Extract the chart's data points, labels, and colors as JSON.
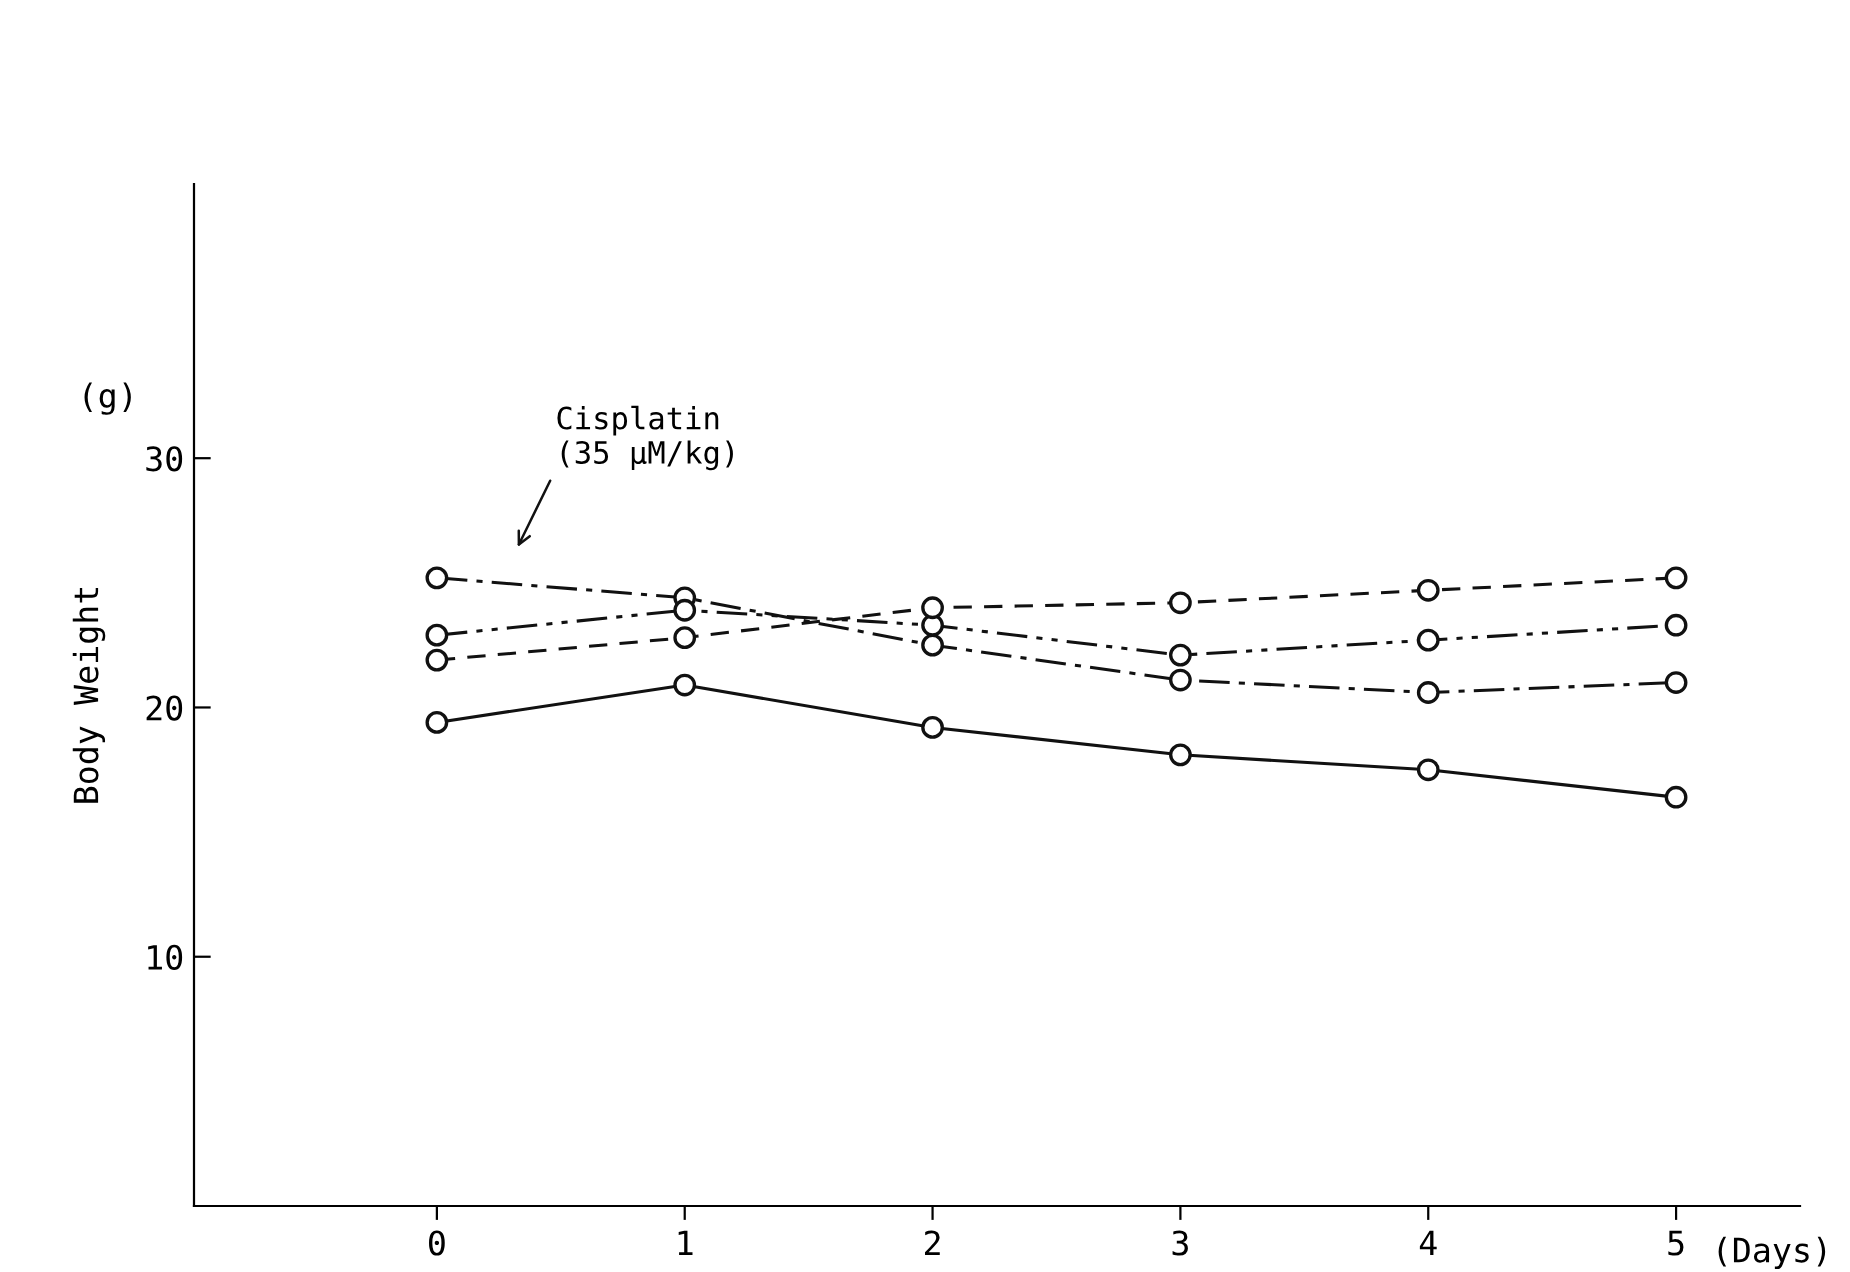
{
  "chart_data": {
    "type": "line",
    "ylabel": "Body Weight",
    "xlabel": "(Days)",
    "annotations": [
      "(g)",
      "Cisplatin\n(35 μM/kg)"
    ],
    "x": [
      0,
      1,
      2,
      3,
      4,
      5
    ],
    "xlim": [
      -0.98,
      5.5
    ],
    "xticks": [
      0,
      1,
      2,
      3,
      4,
      5
    ],
    "ylim": [
      0,
      41
    ],
    "yticks": [
      10,
      20,
      30
    ],
    "grid": false,
    "legend": false,
    "marker": "circle",
    "series": [
      {
        "color": "#111111",
        "line_style": "solid",
        "values": [
          19.4,
          20.9,
          19.2,
          18.1,
          17.5,
          16.4
        ]
      },
      {
        "color": "#111111",
        "line_style": "dashdot",
        "values": [
          25.2,
          24.4,
          22.5,
          21.1,
          20.6,
          21.0
        ]
      },
      {
        "color": "#111111",
        "line_style": "dashdotdot",
        "values": [
          22.9,
          23.9,
          23.3,
          22.1,
          22.7,
          23.3
        ]
      },
      {
        "color": "#111111",
        "line_style": "dashed",
        "values": [
          21.9,
          22.8,
          24.0,
          24.2,
          24.7,
          25.2
        ]
      }
    ]
  }
}
